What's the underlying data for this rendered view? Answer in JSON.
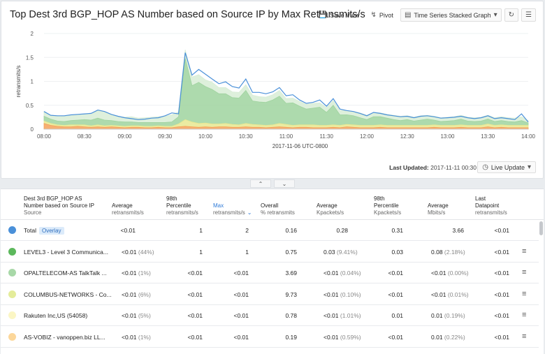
{
  "title": "Top Dest 3rd BGP_HOP AS Number based on Source IP by Max Retransmits/s",
  "toolbar": {
    "save_view": "Save View",
    "pivot": "Pivot",
    "graph_type": "Time Series Stacked Graph"
  },
  "footer": {
    "last_updated_label": "Last Updated:",
    "last_updated_value": "2017-11-11 00:30",
    "live_update": "Live Update"
  },
  "chart_data": {
    "type": "area",
    "ylabel": "retransmits/s",
    "xlabel": "2017-11-06 UTC-0800",
    "ylim": [
      0,
      2
    ],
    "y_ticks": [
      "0",
      "0.5",
      "1",
      "1.5",
      "2"
    ],
    "x_ticks": [
      "08:00",
      "08:30",
      "09:00",
      "09:30",
      "10:00",
      "10:30",
      "11:00",
      "11:30",
      "12:00",
      "12:30",
      "13:00",
      "13:30",
      "14:00"
    ],
    "x_range": [
      "08:00",
      "14:00"
    ],
    "series": [
      {
        "color": "#f4a259",
        "values": [
          0.12,
          0.08,
          0.06,
          0.05,
          0.05,
          0.06,
          0.05,
          0.04,
          0.05,
          0.04,
          0.05,
          0.04,
          0.03,
          0.04,
          0.04,
          0.03,
          0.03,
          0.04,
          0.03,
          0.03,
          0.05,
          0.06,
          0.05,
          0.04,
          0.05,
          0.04,
          0.05,
          0.05,
          0.04,
          0.04,
          0.05,
          0.04,
          0.04,
          0.03,
          0.04,
          0.05,
          0.04,
          0.03,
          0.04,
          0.04,
          0.03,
          0.03,
          0.03,
          0.04,
          0.03,
          0.05,
          0.04,
          0.03,
          0.03,
          0.03,
          0.04,
          0.03,
          0.03,
          0.03,
          0.03,
          0.03,
          0.03,
          0.03,
          0.04,
          0.03,
          0.03,
          0.03,
          0.04,
          0.03,
          0.03,
          0.03,
          0.05,
          0.03,
          0.04,
          0.03,
          0.03,
          0.03,
          0.03
        ]
      },
      {
        "color": "#e8e891",
        "values": [
          0.05,
          0.04,
          0.03,
          0.03,
          0.04,
          0.03,
          0.04,
          0.03,
          0.04,
          0.03,
          0.03,
          0.03,
          0.03,
          0.03,
          0.03,
          0.03,
          0.03,
          0.03,
          0.03,
          0.03,
          0.06,
          0.14,
          0.1,
          0.08,
          0.08,
          0.07,
          0.06,
          0.07,
          0.06,
          0.05,
          0.07,
          0.06,
          0.05,
          0.05,
          0.05,
          0.07,
          0.06,
          0.05,
          0.05,
          0.05,
          0.06,
          0.05,
          0.05,
          0.05,
          0.05,
          0.05,
          0.05,
          0.05,
          0.05,
          0.05,
          0.05,
          0.05,
          0.05,
          0.05,
          0.05,
          0.05,
          0.05,
          0.05,
          0.05,
          0.05,
          0.05,
          0.05,
          0.05,
          0.05,
          0.05,
          0.05,
          0.06,
          0.05,
          0.05,
          0.05,
          0.05,
          0.05,
          0.05
        ]
      },
      {
        "color": "#9fd39f",
        "values": [
          0.1,
          0.09,
          0.08,
          0.08,
          0.09,
          0.1,
          0.11,
          0.12,
          0.14,
          0.12,
          0.1,
          0.09,
          0.09,
          0.08,
          0.07,
          0.08,
          0.08,
          0.07,
          0.08,
          0.09,
          0.15,
          1.28,
          0.76,
          0.86,
          0.76,
          0.72,
          0.63,
          0.62,
          0.56,
          0.56,
          0.69,
          0.49,
          0.48,
          0.48,
          0.52,
          0.57,
          0.44,
          0.47,
          0.39,
          0.33,
          0.35,
          0.38,
          0.27,
          0.41,
          0.22,
          0.2,
          0.19,
          0.16,
          0.12,
          0.18,
          0.17,
          0.15,
          0.12,
          0.1,
          0.12,
          0.09,
          0.11,
          0.13,
          0.1,
          0.08,
          0.09,
          0.1,
          0.12,
          0.09,
          0.08,
          0.09,
          0.1,
          0.08,
          0.09,
          0.08,
          0.07,
          0.1,
          0.05
        ]
      },
      {
        "color": "#d8edd6",
        "values": [
          0.1,
          0.08,
          0.11,
          0.11,
          0.1,
          0.11,
          0.12,
          0.12,
          0.16,
          0.18,
          0.13,
          0.11,
          0.1,
          0.11,
          0.09,
          0.1,
          0.11,
          0.12,
          0.13,
          0.15,
          0.1,
          0.18,
          0.18,
          0.16,
          0.14,
          0.15,
          0.13,
          0.13,
          0.12,
          0.12,
          0.12,
          0.12,
          0.11,
          0.11,
          0.11,
          0.12,
          0.1,
          0.1,
          0.1,
          0.1,
          0.1,
          0.09,
          0.1,
          0.1,
          0.09,
          0.09,
          0.09,
          0.1,
          0.09,
          0.09,
          0.08,
          0.08,
          0.09,
          0.09,
          0.08,
          0.08,
          0.09,
          0.08,
          0.08,
          0.08,
          0.08,
          0.08,
          0.08,
          0.08,
          0.08,
          0.08,
          0.08,
          0.08,
          0.08,
          0.08,
          0.08,
          0.08,
          0.05
        ]
      }
    ],
    "total_line": {
      "color": "#4a90d9",
      "values": [
        0.37,
        0.29,
        0.28,
        0.28,
        0.3,
        0.31,
        0.32,
        0.33,
        0.4,
        0.37,
        0.31,
        0.27,
        0.24,
        0.22,
        0.2,
        0.21,
        0.23,
        0.24,
        0.28,
        0.34,
        0.32,
        1.6,
        1.13,
        1.25,
        1.15,
        1.05,
        0.95,
        0.99,
        0.89,
        0.86,
        1.05,
        0.77,
        0.77,
        0.74,
        0.78,
        0.87,
        0.7,
        0.72,
        0.61,
        0.54,
        0.56,
        0.61,
        0.48,
        0.64,
        0.42,
        0.39,
        0.37,
        0.33,
        0.28,
        0.35,
        0.33,
        0.3,
        0.28,
        0.26,
        0.27,
        0.24,
        0.27,
        0.28,
        0.26,
        0.23,
        0.24,
        0.25,
        0.27,
        0.24,
        0.22,
        0.24,
        0.28,
        0.22,
        0.24,
        0.22,
        0.2,
        0.32,
        0.15
      ]
    }
  },
  "table": {
    "headers": [
      {
        "main": "Dest 3rd BGP_HOP AS Number based on Source IP",
        "sub": "Source"
      },
      {
        "main": "Average",
        "sub": "retransmits/s"
      },
      {
        "main": "98th Percentile",
        "sub": "retransmits/s"
      },
      {
        "main": "Max",
        "sub": "retransmits/s"
      },
      {
        "main": "Overall",
        "sub": "% retransmits"
      },
      {
        "main": "Average",
        "sub": "Kpackets/s"
      },
      {
        "main": "98th Percentile",
        "sub": "Kpackets/s"
      },
      {
        "main": "Average",
        "sub": "Mbits/s"
      },
      {
        "main": "Last Datapoint",
        "sub": "retransmits/s"
      }
    ],
    "header_lines": {
      "h0": [
        "Dest 3rd BGP_HOP AS",
        "Number based on Source IP",
        "Source"
      ],
      "h1": [
        "Average",
        "retransmits/s"
      ],
      "h2": [
        "98th",
        "Percentile",
        "retransmits/s"
      ],
      "h3": [
        "Max",
        "retransmits/s"
      ],
      "h4": [
        "Overall",
        "% retransmits"
      ],
      "h5": [
        "Average",
        "Kpackets/s"
      ],
      "h6": [
        "98th",
        "Percentile",
        "Kpackets/s"
      ],
      "h7": [
        "Average",
        "Mbits/s"
      ],
      "h8": [
        "Last",
        "Datapoint",
        "retransmits/s"
      ]
    },
    "overlay_badge": "Overlay",
    "rows": [
      {
        "color": "#4a90d9",
        "name": "Total",
        "avg": "<0.01",
        "avg_pct": "",
        "p98": "1",
        "max": "2",
        "overall": "0.16",
        "kpps": "0.28",
        "kpps_pct": "",
        "kpps98": "0.31",
        "mbps": "3.66",
        "mbps_pct": "",
        "last": "<0.01"
      },
      {
        "color": "#5cb85c",
        "name": "LEVEL3 - Level 3 Communica...",
        "avg": "<0.01",
        "avg_pct": "(44%)",
        "p98": "1",
        "max": "1",
        "overall": "0.75",
        "kpps": "0.03",
        "kpps_pct": "(9.41%)",
        "kpps98": "0.03",
        "mbps": "0.08",
        "mbps_pct": "(2.18%)",
        "last": "<0.01"
      },
      {
        "color": "#a8d8a8",
        "name": "OPALTELECOM-AS TalkTalk ...",
        "avg": "<0.01",
        "avg_pct": "(1%)",
        "p98": "<0.01",
        "max": "<0.01",
        "overall": "3.69",
        "kpps": "<0.01",
        "kpps_pct": "(0.04%)",
        "kpps98": "<0.01",
        "mbps": "<0.01",
        "mbps_pct": "(0.00%)",
        "last": "<0.01"
      },
      {
        "color": "#e4ec9a",
        "name": "COLUMBUS-NETWORKS - Co...",
        "avg": "<0.01",
        "avg_pct": "(6%)",
        "p98": "<0.01",
        "max": "<0.01",
        "overall": "9.73",
        "kpps": "<0.01",
        "kpps_pct": "(0.10%)",
        "kpps98": "<0.01",
        "mbps": "<0.01",
        "mbps_pct": "(0.01%)",
        "last": "<0.01"
      },
      {
        "color": "#fbf6c4",
        "name": "Rakuten Inc,US (54058)",
        "avg": "<0.01",
        "avg_pct": "(5%)",
        "p98": "<0.01",
        "max": "<0.01",
        "overall": "0.78",
        "kpps": "<0.01",
        "kpps_pct": "(1.01%)",
        "kpps98": "0.01",
        "mbps": "0.01",
        "mbps_pct": "(0.19%)",
        "last": "<0.01"
      },
      {
        "color": "#fcd79a",
        "name": "AS-VOBIZ - vanoppen.biz LL...",
        "avg": "<0.01",
        "avg_pct": "(1%)",
        "p98": "<0.01",
        "max": "<0.01",
        "overall": "0.19",
        "kpps": "<0.01",
        "kpps_pct": "(0.59%)",
        "kpps98": "<0.01",
        "mbps": "0.01",
        "mbps_pct": "(0.22%)",
        "last": "<0.01"
      }
    ]
  }
}
